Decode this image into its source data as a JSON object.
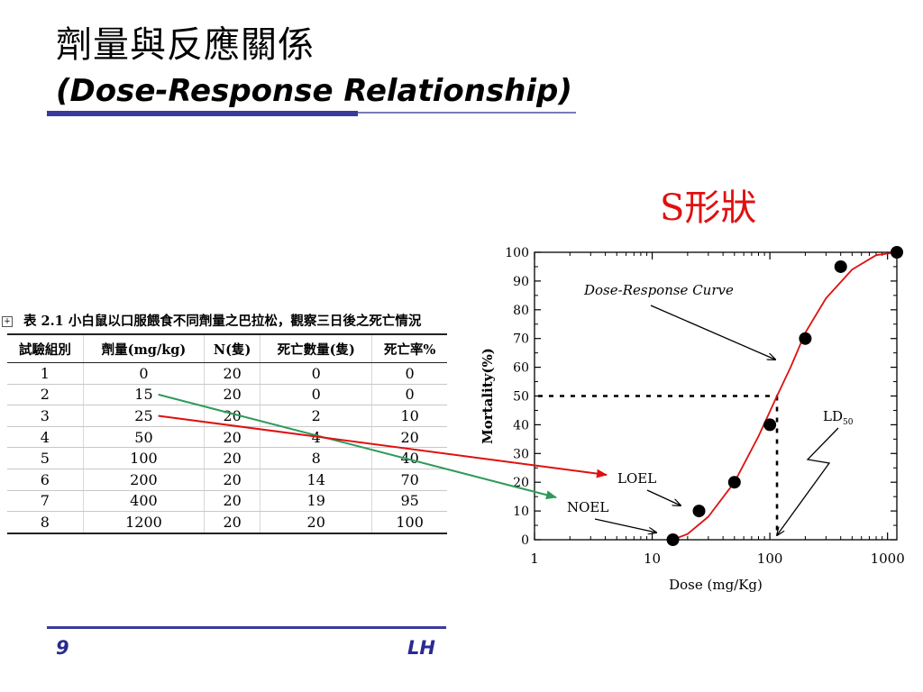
{
  "slide": {
    "title_cn": "劑量與反應關係",
    "title_en": "(Dose-Response Relationship)",
    "shape_label": "S形狀",
    "page_number": "9",
    "author": "LH",
    "accent_color": "#3a3a9c",
    "highlight_color": "#e01010"
  },
  "table": {
    "caption": "表 2.1 小白鼠以口服餵食不同劑量之巴拉松，觀察三日後之死亡情況",
    "headers": [
      "試驗組別",
      "劑量(mg/kg)",
      "N(隻)",
      "死亡數量(隻)",
      "死亡率%"
    ],
    "rows": [
      [
        "1",
        "0",
        "20",
        "0",
        "0"
      ],
      [
        "2",
        "15",
        "20",
        "0",
        "0"
      ],
      [
        "3",
        "25",
        "20",
        "2",
        "10"
      ],
      [
        "4",
        "50",
        "20",
        "4",
        "20"
      ],
      [
        "5",
        "100",
        "20",
        "8",
        "40"
      ],
      [
        "6",
        "200",
        "20",
        "14",
        "70"
      ],
      [
        "7",
        "400",
        "20",
        "19",
        "95"
      ],
      [
        "8",
        "1200",
        "20",
        "20",
        "100"
      ]
    ]
  },
  "chart_data": {
    "type": "scatter",
    "title": "",
    "xlabel": "Dose (mg/Kg)",
    "ylabel": "Mortality(%)",
    "x_scale": "log",
    "xlim": [
      1,
      1200
    ],
    "ylim": [
      0,
      100
    ],
    "x_ticks": [
      1,
      10,
      100,
      1000
    ],
    "x_tick_labels": [
      "1",
      "10",
      "100",
      "1000"
    ],
    "y_ticks": [
      0,
      10,
      20,
      30,
      40,
      50,
      60,
      70,
      80,
      90,
      100
    ],
    "y_tick_labels": [
      "0",
      "10",
      "20",
      "30",
      "40",
      "50",
      "60",
      "70",
      "80",
      "90",
      "100"
    ],
    "grid": false,
    "series": [
      {
        "marker": "filled-circle",
        "x": [
          15,
          25,
          50,
          100,
          200,
          400,
          1200
        ],
        "y": [
          0,
          10,
          20,
          40,
          70,
          95,
          100
        ],
        "color": "#000000"
      },
      {
        "style": "line",
        "x": [
          15,
          20,
          30,
          50,
          80,
          115,
          150,
          200,
          300,
          500,
          800,
          1200
        ],
        "y": [
          0,
          2,
          8,
          20,
          36,
          50,
          60,
          72,
          84,
          94,
          99,
          100
        ],
        "color": "#e01010"
      }
    ],
    "reference_lines": {
      "ld50_dose": 115,
      "ld50_response": 50,
      "style": "dotted"
    },
    "annotations": [
      {
        "text": "Dose-Response Curve",
        "x": 300,
        "y": 82
      },
      {
        "text": "LOEL",
        "x": 20,
        "y": 22
      },
      {
        "text": "NOEL",
        "x": 6,
        "y": 10
      },
      {
        "text": "LD",
        "subscript": "50",
        "x": 350,
        "y": 41
      }
    ],
    "table_links": [
      {
        "from_row": 2,
        "to": "NOEL",
        "color": "#2e9a5a"
      },
      {
        "from_row": 3,
        "to": "LOEL",
        "color": "#e01010"
      }
    ]
  }
}
